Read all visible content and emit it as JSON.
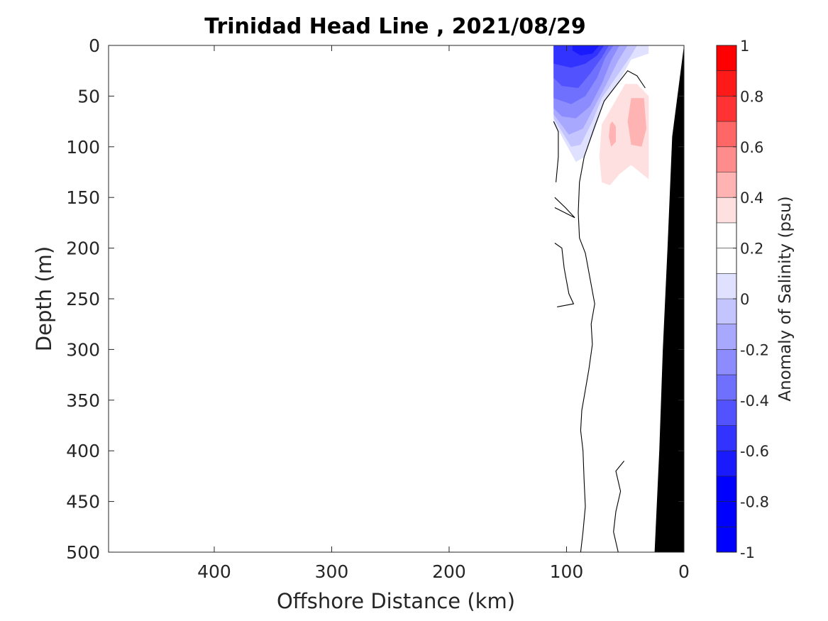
{
  "chart_data": {
    "type": "heatmap",
    "subtype": "filled-contour section",
    "title": "Trinidad Head Line , 2021/08/29",
    "xlabel": "Offshore Distance (km)",
    "ylabel": "Depth (m)",
    "x_reversed": true,
    "y_reversed": true,
    "xlim": [
      0,
      490
    ],
    "ylim": [
      0,
      500
    ],
    "xticks": [
      400,
      300,
      200,
      100,
      0
    ],
    "xtick_labels": [
      "400",
      "300",
      "200",
      "100",
      "0"
    ],
    "yticks": [
      0,
      50,
      100,
      150,
      200,
      250,
      300,
      350,
      400,
      450,
      500
    ],
    "ytick_labels": [
      "0",
      "50",
      "100",
      "150",
      "200",
      "250",
      "300",
      "350",
      "400",
      "450",
      "500"
    ],
    "colorbar": {
      "label": "Anomaly of Salinity (psu)",
      "range": [
        -1,
        1
      ],
      "ticks": [
        1,
        0.8,
        0.6,
        0.4,
        0.2,
        0,
        -0.2,
        -0.4,
        -0.6,
        -0.8,
        -1
      ],
      "tick_labels": [
        "1",
        "0.8",
        "0.6",
        "0.4",
        "0.2",
        "0",
        "-0.2",
        "-0.4",
        "-0.6",
        "-0.8",
        "-1"
      ],
      "step": 0.1,
      "colors_top_to_bottom": [
        "#ff0000",
        "#ff1a1a",
        "#ff3333",
        "#ff6666",
        "#ff8c8c",
        "#ffb3b3",
        "#ffe0e0",
        "#ffffff",
        "#ffffff",
        "#e0e0ff",
        "#c4c4ff",
        "#a8a8ff",
        "#8c8cff",
        "#7070ff",
        "#5252ff",
        "#3333ff",
        "#1a1aff",
        "#0000ff",
        "#0000ff",
        "#0000ff"
      ]
    },
    "data_extent_km": [
      30,
      111
    ],
    "contours": [
      {
        "level": -0.1,
        "fill": "#e0e0ff",
        "points": [
          [
            111,
            0
          ],
          [
            30,
            0
          ],
          [
            30,
            8
          ],
          [
            45,
            14
          ],
          [
            55,
            35
          ],
          [
            68,
            55
          ],
          [
            75,
            80
          ],
          [
            85,
            110
          ],
          [
            92,
            115
          ],
          [
            111,
            75
          ]
        ]
      },
      {
        "level": -0.2,
        "fill": "#c4c4ff",
        "points": [
          [
            111,
            0
          ],
          [
            40,
            0
          ],
          [
            45,
            10
          ],
          [
            57,
            30
          ],
          [
            70,
            52
          ],
          [
            78,
            75
          ],
          [
            88,
            98
          ],
          [
            96,
            100
          ],
          [
            111,
            72
          ]
        ]
      },
      {
        "level": -0.3,
        "fill": "#a8a8ff",
        "points": [
          [
            111,
            0
          ],
          [
            48,
            0
          ],
          [
            56,
            15
          ],
          [
            66,
            38
          ],
          [
            76,
            60
          ],
          [
            86,
            82
          ],
          [
            98,
            88
          ],
          [
            111,
            68
          ]
        ]
      },
      {
        "level": -0.4,
        "fill": "#8c8cff",
        "points": [
          [
            111,
            0
          ],
          [
            55,
            0
          ],
          [
            62,
            15
          ],
          [
            70,
            38
          ],
          [
            80,
            60
          ],
          [
            92,
            72
          ],
          [
            104,
            70
          ],
          [
            111,
            62
          ]
        ]
      },
      {
        "level": -0.5,
        "fill": "#7070ff",
        "points": [
          [
            111,
            0
          ],
          [
            60,
            0
          ],
          [
            67,
            12
          ],
          [
            74,
            32
          ],
          [
            84,
            50
          ],
          [
            96,
            58
          ],
          [
            111,
            52
          ]
        ]
      },
      {
        "level": -0.6,
        "fill": "#5252ff",
        "points": [
          [
            111,
            0
          ],
          [
            64,
            0
          ],
          [
            70,
            12
          ],
          [
            80,
            28
          ],
          [
            90,
            42
          ],
          [
            104,
            40
          ],
          [
            111,
            32
          ]
        ]
      },
      {
        "level": -0.7,
        "fill": "#3333ff",
        "points": [
          [
            111,
            0
          ],
          [
            68,
            0
          ],
          [
            74,
            10
          ],
          [
            84,
            18
          ],
          [
            96,
            22
          ],
          [
            111,
            18
          ]
        ]
      },
      {
        "level": -0.8,
        "fill": "#1a1aff",
        "points": [
          [
            95,
            0
          ],
          [
            72,
            0
          ],
          [
            78,
            8
          ],
          [
            88,
            10
          ],
          [
            95,
            5
          ]
        ]
      },
      {
        "level": 0.1,
        "fill": "#ffe0e0",
        "points": [
          [
            50,
            38
          ],
          [
            70,
            78
          ],
          [
            72,
            110
          ],
          [
            70,
            135
          ],
          [
            63,
            138
          ],
          [
            55,
            127
          ],
          [
            45,
            118
          ],
          [
            30,
            132
          ],
          [
            30,
            50
          ],
          [
            40,
            38
          ]
        ]
      },
      {
        "level": 0.2,
        "fill": "#ffb3b3",
        "points": [
          [
            45,
            52
          ],
          [
            34,
            52
          ],
          [
            32,
            82
          ],
          [
            36,
            100
          ],
          [
            45,
            98
          ],
          [
            48,
            75
          ]
        ]
      },
      {
        "level": 0.2,
        "fill": "#ffb3b3",
        "points": [
          [
            61,
            75
          ],
          [
            58,
            80
          ],
          [
            58,
            95
          ],
          [
            62,
            100
          ],
          [
            64,
            90
          ],
          [
            63,
            78
          ]
        ]
      }
    ],
    "zero_lines": [
      [
        [
          33,
          42
        ],
        [
          40,
          30
        ],
        [
          48,
          25
        ],
        [
          58,
          40
        ],
        [
          68,
          55
        ],
        [
          76,
          80
        ],
        [
          85,
          110
        ],
        [
          89,
          135
        ],
        [
          90,
          165
        ],
        [
          89,
          190
        ],
        [
          84,
          205
        ],
        [
          80,
          230
        ],
        [
          76,
          255
        ],
        [
          79,
          275
        ],
        [
          78,
          295
        ],
        [
          81,
          320
        ],
        [
          84,
          340
        ],
        [
          87,
          360
        ],
        [
          88,
          380
        ],
        [
          86,
          400
        ],
        [
          85,
          430
        ],
        [
          84,
          455
        ],
        [
          86,
          480
        ],
        [
          88,
          500
        ]
      ],
      [
        [
          111,
          75
        ],
        [
          107,
          85
        ],
        [
          107,
          110
        ],
        [
          109,
          135
        ]
      ],
      [
        [
          110,
          150
        ],
        [
          101,
          160
        ],
        [
          93,
          170
        ],
        [
          110,
          160
        ]
      ],
      [
        [
          110,
          195
        ],
        [
          104,
          200
        ],
        [
          102,
          220
        ],
        [
          98,
          245
        ],
        [
          94,
          255
        ],
        [
          108,
          258
        ]
      ],
      [
        [
          51,
          410
        ],
        [
          58,
          420
        ],
        [
          54,
          440
        ],
        [
          58,
          460
        ],
        [
          60,
          480
        ],
        [
          56,
          500
        ]
      ]
    ],
    "bathymetry": [
      [
        0,
        0
      ],
      [
        10,
        90
      ],
      [
        14,
        200
      ],
      [
        18,
        300
      ],
      [
        21,
        400
      ],
      [
        25,
        500
      ],
      [
        0,
        500
      ]
    ],
    "grid": false
  }
}
